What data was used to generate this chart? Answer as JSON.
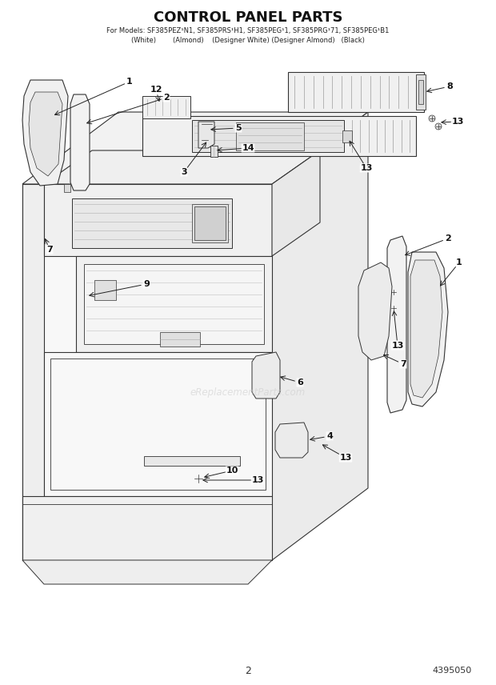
{
  "title": "CONTROL PANEL PARTS",
  "subtitle1": "For Models: SF385PEZ¹N1, SF385PRS¹H1, SF385PEG¹1, SF385PRG¹71, SF385PEG¹B1",
  "subtitle2": "(White)        (Almond)    (Designer White) (Designer Almond)   (Black)",
  "page_num": "2",
  "part_num": "4395050",
  "bg_color": "#ffffff",
  "lc": "#333333",
  "watermark": "eReplacementParts.com"
}
